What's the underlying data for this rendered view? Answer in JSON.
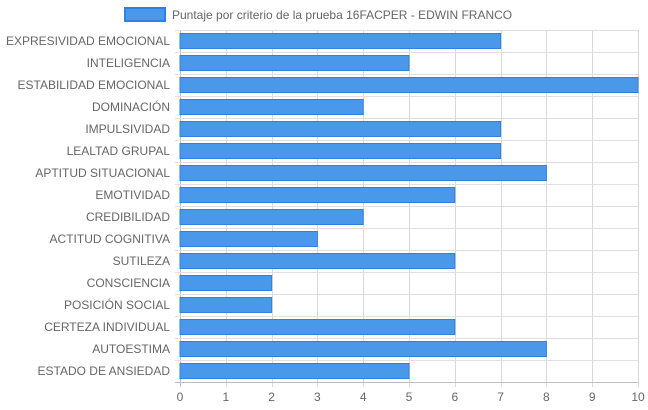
{
  "chart_data": {
    "type": "bar",
    "orientation": "horizontal",
    "categories": [
      "EXPRESIVIDAD EMOCIONAL",
      "INTELIGENCIA",
      "ESTABILIDAD EMOCIONAL",
      "DOMINACIÓN",
      "IMPULSIVIDAD",
      "LEALTAD GRUPAL",
      "APTITUD SITUACIONAL",
      "EMOTIVIDAD",
      "CREDIBILIDAD",
      "ACTITUD COGNITIVA",
      "SUTILEZA",
      "CONSCIENCIA",
      "POSICIÓN SOCIAL",
      "CERTEZA INDIVIDUAL",
      "AUTOESTIMA",
      "ESTADO DE ANSIEDAD"
    ],
    "series": [
      {
        "name": "Puntaje por criterio de la prueba 16FACPER - EDWIN FRANCO",
        "values": [
          7,
          5,
          10,
          4,
          7,
          7,
          8,
          6,
          4,
          3,
          6,
          2,
          2,
          6,
          8,
          5
        ],
        "color": "#4a98ea",
        "border_color": "#2f80e6"
      }
    ],
    "x_ticks": [
      "0",
      "1",
      "2",
      "3",
      "4",
      "5",
      "6",
      "7",
      "8",
      "9",
      "10"
    ],
    "xlim": [
      0,
      10
    ],
    "grid": true,
    "legend_position": "top"
  }
}
